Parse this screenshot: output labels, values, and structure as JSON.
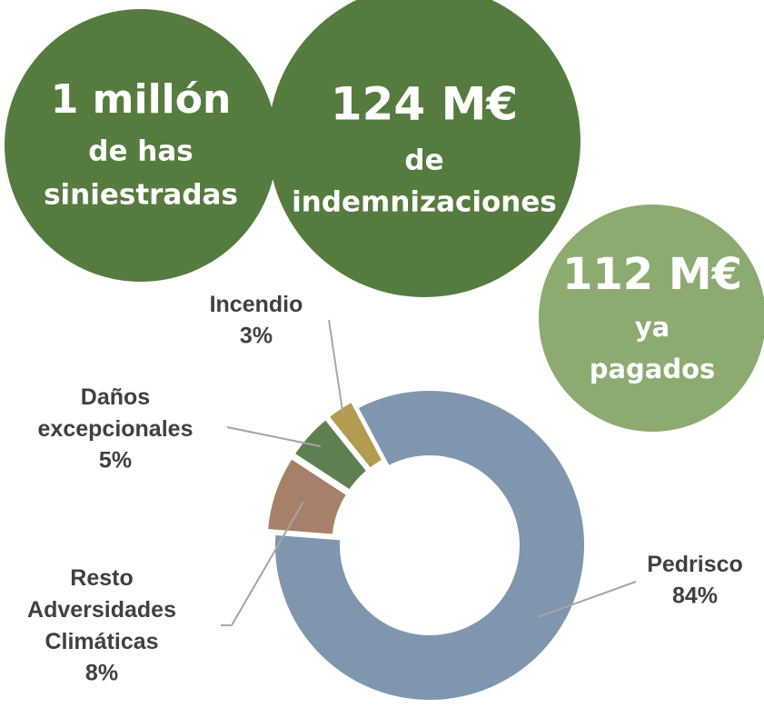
{
  "stats": [
    {
      "headline": "1 millón",
      "lines": [
        "de has",
        "siniestradas"
      ]
    },
    {
      "headline": "124 M€",
      "lines": [
        "de",
        "indemnizaciones"
      ]
    },
    {
      "headline": "112 M€",
      "lines": [
        "ya",
        "pagados"
      ]
    }
  ],
  "chart_data": {
    "type": "pie",
    "donut": true,
    "categories": [
      "Pedrisco",
      "Resto Adversidades Climáticas",
      "Daños excepcionales",
      "Incendio"
    ],
    "values": [
      84,
      8,
      5,
      3
    ],
    "value_labels": [
      "84%",
      "8%",
      "5%",
      "3%"
    ],
    "colors": [
      "#7f96ae",
      "#a87f68",
      "#5f7f50",
      "#b39b50"
    ]
  }
}
